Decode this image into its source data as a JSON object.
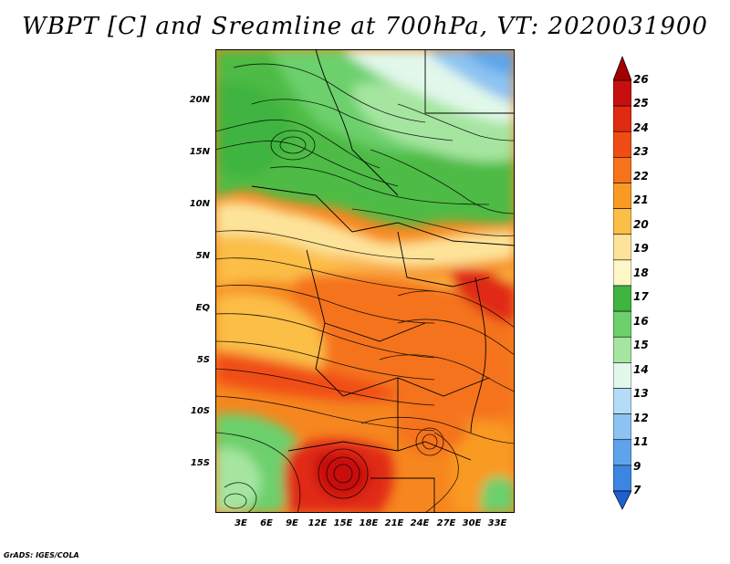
{
  "title": "WBPT [C] and Sreamline at 700hPa, VT: 2020031900",
  "credit": "GrADS: IGES/COLA",
  "lat_labels": [
    "20N",
    "15N",
    "10N",
    "5N",
    "EQ",
    "5S",
    "10S",
    "15S"
  ],
  "lon_labels": [
    "3E",
    "6E",
    "9E",
    "12E",
    "15E",
    "18E",
    "21E",
    "24E",
    "27E",
    "30E",
    "33E"
  ],
  "colorbar": {
    "labels": [
      "26",
      "25",
      "24",
      "23",
      "22",
      "21",
      "20",
      "19",
      "18",
      "17",
      "16",
      "15",
      "14",
      "13",
      "12",
      "11",
      "9",
      "7"
    ],
    "colors": [
      "#a50000",
      "#c80f0f",
      "#e02a12",
      "#f04d14",
      "#f5731c",
      "#f99a24",
      "#fbbe46",
      "#fde39a",
      "#fdf7c8",
      "#3fb43f",
      "#6cd06c",
      "#a6e5a0",
      "#e1f8ea",
      "#b5dcf6",
      "#8cc3f2",
      "#5da4ec",
      "#3c86e2",
      "#1f5fd2"
    ]
  }
}
